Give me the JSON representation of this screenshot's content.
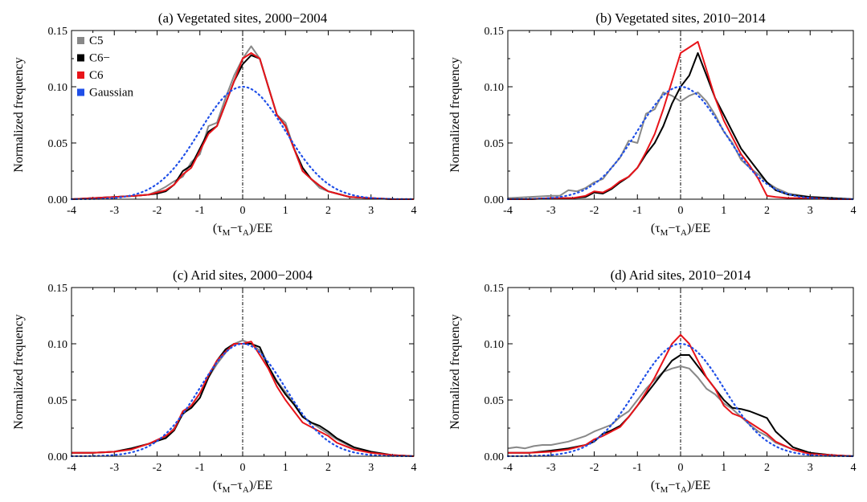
{
  "xlabel_parts": {
    "open": "(τ",
    "sub1": "M",
    "mid": "−τ",
    "sub2": "A",
    "close": ")/EE"
  },
  "xlim": [
    -4,
    4
  ],
  "ylim": [
    0,
    0.15
  ],
  "xticks": [
    -4,
    -3,
    -2,
    -1,
    0,
    1,
    2,
    3,
    4
  ],
  "yticks": [
    "0.00",
    "0.05",
    "0.10",
    "0.15"
  ],
  "colors": {
    "C5": "#888888",
    "C6-": "#000000",
    "C6": "#e8141a",
    "Gaussian": "#1f4fe8"
  },
  "legend": [
    "C5",
    "C6−",
    "C6",
    "Gaussian"
  ],
  "chart_data": [
    {
      "type": "line",
      "title": "(a) Vegetated sites, 2000−2004",
      "ylabel": "Normalized frequency",
      "xlabel": "(τM−τA)/EE",
      "series": [
        {
          "name": "C5",
          "key": "C5",
          "style": "solid",
          "x": [
            -4,
            -3.5,
            -3,
            -2.5,
            -2.2,
            -2,
            -1.8,
            -1.6,
            -1.4,
            -1.2,
            -1,
            -0.8,
            -0.6,
            -0.4,
            -0.2,
            0,
            0.2,
            0.4,
            0.6,
            0.8,
            1,
            1.2,
            1.4,
            1.6,
            1.8,
            2,
            2.2,
            2.5,
            3,
            3.5,
            4
          ],
          "y": [
            0,
            0.001,
            0.002,
            0.003,
            0.004,
            0.007,
            0.011,
            0.016,
            0.02,
            0.033,
            0.04,
            0.065,
            0.068,
            0.09,
            0.11,
            0.125,
            0.136,
            0.125,
            0.1,
            0.075,
            0.068,
            0.045,
            0.025,
            0.018,
            0.01,
            0.007,
            0.005,
            0.002,
            0.001,
            0,
            0
          ]
        },
        {
          "name": "C6−",
          "key": "C6-",
          "style": "solid",
          "x": [
            -4,
            -3.5,
            -3,
            -2.5,
            -2.2,
            -2,
            -1.8,
            -1.6,
            -1.4,
            -1.2,
            -1,
            -0.8,
            -0.6,
            -0.4,
            -0.2,
            0,
            0.2,
            0.4,
            0.6,
            0.8,
            1,
            1.2,
            1.4,
            1.6,
            1.8,
            2,
            2.2,
            2.5,
            3,
            3.5,
            4
          ],
          "y": [
            0,
            0.001,
            0.002,
            0.003,
            0.004,
            0.005,
            0.007,
            0.013,
            0.025,
            0.03,
            0.045,
            0.06,
            0.065,
            0.085,
            0.105,
            0.12,
            0.128,
            0.125,
            0.1,
            0.075,
            0.065,
            0.045,
            0.028,
            0.018,
            0.012,
            0.007,
            0.005,
            0.002,
            0.001,
            0,
            0
          ]
        },
        {
          "name": "C6",
          "key": "C6",
          "style": "solid",
          "x": [
            -4,
            -3.5,
            -3,
            -2.5,
            -2.2,
            -2,
            -1.8,
            -1.6,
            -1.4,
            -1.2,
            -1,
            -0.8,
            -0.6,
            -0.4,
            -0.2,
            0,
            0.2,
            0.4,
            0.6,
            0.8,
            1,
            1.2,
            1.4,
            1.6,
            1.8,
            2,
            2.2,
            2.5,
            3,
            3.5,
            4
          ],
          "y": [
            0,
            0.001,
            0.002,
            0.003,
            0.004,
            0.006,
            0.008,
            0.013,
            0.022,
            0.028,
            0.043,
            0.058,
            0.065,
            0.085,
            0.105,
            0.125,
            0.13,
            0.125,
            0.1,
            0.075,
            0.065,
            0.045,
            0.025,
            0.018,
            0.012,
            0.007,
            0.005,
            0.002,
            0.001,
            0,
            0
          ]
        },
        {
          "name": "Gaussian",
          "key": "Gaussian",
          "style": "dotted",
          "gaussian": true
        }
      ]
    },
    {
      "type": "line",
      "title": "(b) Vegetated sites, 2010−2014",
      "ylabel": "Normalized frequency",
      "xlabel": "(τM−τA)/EE",
      "series": [
        {
          "name": "C5",
          "key": "C5",
          "style": "solid",
          "x": [
            -4,
            -3.5,
            -3,
            -2.8,
            -2.6,
            -2.4,
            -2.2,
            -2,
            -1.8,
            -1.6,
            -1.4,
            -1.2,
            -1,
            -0.8,
            -0.6,
            -0.4,
            -0.2,
            0,
            0.2,
            0.4,
            0.6,
            0.8,
            1,
            1.2,
            1.4,
            1.6,
            1.8,
            2,
            2.2,
            2.5,
            3,
            3.5,
            4
          ],
          "y": [
            0.001,
            0.002,
            0.003,
            0.003,
            0.008,
            0.007,
            0.01,
            0.015,
            0.018,
            0.028,
            0.037,
            0.052,
            0.05,
            0.076,
            0.08,
            0.095,
            0.092,
            0.087,
            0.092,
            0.095,
            0.087,
            0.075,
            0.06,
            0.05,
            0.035,
            0.028,
            0.022,
            0.015,
            0.01,
            0.005,
            0.002,
            0.001,
            0
          ]
        },
        {
          "name": "C6−",
          "key": "C6-",
          "style": "solid",
          "x": [
            -4,
            -3.5,
            -3,
            -2.5,
            -2.2,
            -2,
            -1.8,
            -1.6,
            -1.4,
            -1.2,
            -1,
            -0.8,
            -0.6,
            -0.4,
            -0.2,
            0,
            0.2,
            0.4,
            0.6,
            0.8,
            1,
            1.2,
            1.4,
            1.6,
            1.8,
            2,
            2.2,
            2.5,
            3,
            3.5,
            4
          ],
          "y": [
            0,
            0,
            0.001,
            0.001,
            0.002,
            0.006,
            0.005,
            0.009,
            0.015,
            0.02,
            0.028,
            0.04,
            0.05,
            0.065,
            0.085,
            0.1,
            0.11,
            0.13,
            0.11,
            0.09,
            0.075,
            0.06,
            0.045,
            0.035,
            0.025,
            0.015,
            0.008,
            0.004,
            0.002,
            0.001,
            0
          ]
        },
        {
          "name": "C6",
          "key": "C6",
          "style": "solid",
          "x": [
            -4,
            -3.5,
            -3,
            -2.5,
            -2.2,
            -2,
            -1.8,
            -1.6,
            -1.4,
            -1.2,
            -1,
            -0.8,
            -0.6,
            -0.4,
            -0.2,
            0,
            0.2,
            0.4,
            0.6,
            0.8,
            1,
            1.2,
            1.4,
            1.6,
            1.8,
            2,
            2.2,
            2.5,
            3,
            3.5,
            4
          ],
          "y": [
            0,
            0,
            0.001,
            0.001,
            0.003,
            0.007,
            0.006,
            0.01,
            0.016,
            0.02,
            0.028,
            0.042,
            0.058,
            0.08,
            0.105,
            0.13,
            0.135,
            0.14,
            0.115,
            0.09,
            0.07,
            0.055,
            0.04,
            0.03,
            0.018,
            0.003,
            0.002,
            0.001,
            0.001,
            0,
            0
          ]
        },
        {
          "name": "Gaussian",
          "key": "Gaussian",
          "style": "dotted",
          "gaussian": true
        }
      ]
    },
    {
      "type": "line",
      "title": "(c) Arid sites, 2000−2004",
      "ylabel": "Normalized frequency",
      "xlabel": "(τM−τA)/EE",
      "series": [
        {
          "name": "C5",
          "key": "C5",
          "style": "solid",
          "x": [
            -4,
            -3.5,
            -3,
            -2.6,
            -2.2,
            -1.8,
            -1.6,
            -1.4,
            -1.2,
            -1,
            -0.8,
            -0.6,
            -0.4,
            -0.2,
            0,
            0.2,
            0.4,
            0.6,
            0.8,
            1,
            1.2,
            1.4,
            1.6,
            1.8,
            2,
            2.2,
            2.6,
            3,
            3.5,
            4
          ],
          "y": [
            0.003,
            0.003,
            0.004,
            0.007,
            0.011,
            0.017,
            0.025,
            0.037,
            0.045,
            0.056,
            0.07,
            0.082,
            0.092,
            0.1,
            0.103,
            0.1,
            0.094,
            0.08,
            0.067,
            0.057,
            0.047,
            0.035,
            0.03,
            0.025,
            0.02,
            0.015,
            0.007,
            0.003,
            0.001,
            0
          ]
        },
        {
          "name": "C6−",
          "key": "C6-",
          "style": "solid",
          "x": [
            -4,
            -3.5,
            -3,
            -2.6,
            -2.2,
            -1.8,
            -1.6,
            -1.4,
            -1.2,
            -1,
            -0.8,
            -0.6,
            -0.4,
            -0.2,
            0,
            0.2,
            0.4,
            0.6,
            0.8,
            1,
            1.2,
            1.4,
            1.6,
            1.8,
            2,
            2.2,
            2.6,
            3,
            3.5,
            4
          ],
          "y": [
            0.003,
            0.003,
            0.004,
            0.007,
            0.011,
            0.016,
            0.023,
            0.038,
            0.043,
            0.052,
            0.07,
            0.085,
            0.095,
            0.1,
            0.1,
            0.1,
            0.097,
            0.08,
            0.066,
            0.055,
            0.046,
            0.035,
            0.03,
            0.027,
            0.022,
            0.016,
            0.008,
            0.004,
            0.001,
            0
          ]
        },
        {
          "name": "C6",
          "key": "C6",
          "style": "solid",
          "x": [
            -4,
            -3.5,
            -3,
            -2.6,
            -2.2,
            -1.8,
            -1.6,
            -1.4,
            -1.2,
            -1,
            -0.8,
            -0.6,
            -0.4,
            -0.2,
            0,
            0.2,
            0.4,
            0.6,
            0.8,
            1,
            1.2,
            1.4,
            1.6,
            1.8,
            2,
            2.2,
            2.6,
            3,
            3.5,
            4
          ],
          "y": [
            0.003,
            0.003,
            0.004,
            0.006,
            0.011,
            0.018,
            0.024,
            0.04,
            0.045,
            0.056,
            0.072,
            0.085,
            0.093,
            0.1,
            0.1,
            0.102,
            0.09,
            0.078,
            0.062,
            0.05,
            0.04,
            0.03,
            0.026,
            0.022,
            0.018,
            0.012,
            0.006,
            0.003,
            0.001,
            0
          ]
        },
        {
          "name": "Gaussian",
          "key": "Gaussian",
          "style": "dotted",
          "gaussian": true
        }
      ]
    },
    {
      "type": "line",
      "title": "(d) Arid sites, 2010−2014",
      "ylabel": "Normalized frequency",
      "xlabel": "(τM−τA)/EE",
      "series": [
        {
          "name": "C5",
          "key": "C5",
          "style": "solid",
          "x": [
            -4,
            -3.8,
            -3.6,
            -3.4,
            -3.2,
            -3,
            -2.6,
            -2.2,
            -2,
            -1.8,
            -1.6,
            -1.4,
            -1.2,
            -1,
            -0.8,
            -0.6,
            -0.4,
            -0.2,
            0,
            0.2,
            0.4,
            0.6,
            0.8,
            1,
            1.2,
            1.4,
            1.6,
            1.8,
            2,
            2.2,
            2.6,
            3,
            3.5,
            4
          ],
          "y": [
            0.007,
            0.008,
            0.007,
            0.009,
            0.01,
            0.01,
            0.013,
            0.018,
            0.022,
            0.025,
            0.028,
            0.035,
            0.04,
            0.05,
            0.06,
            0.068,
            0.075,
            0.078,
            0.08,
            0.078,
            0.07,
            0.06,
            0.055,
            0.047,
            0.042,
            0.035,
            0.028,
            0.022,
            0.018,
            0.012,
            0.006,
            0.003,
            0.001,
            0
          ]
        },
        {
          "name": "C6−",
          "key": "C6-",
          "style": "solid",
          "x": [
            -4,
            -3.5,
            -3,
            -2.6,
            -2.2,
            -2,
            -1.8,
            -1.6,
            -1.4,
            -1.2,
            -1,
            -0.8,
            -0.6,
            -0.4,
            -0.2,
            0,
            0.2,
            0.4,
            0.6,
            0.8,
            1,
            1.2,
            1.4,
            1.6,
            1.8,
            2,
            2.2,
            2.6,
            3,
            3.5,
            4
          ],
          "y": [
            0.003,
            0.003,
            0.005,
            0.007,
            0.01,
            0.013,
            0.02,
            0.023,
            0.027,
            0.035,
            0.045,
            0.055,
            0.065,
            0.075,
            0.085,
            0.09,
            0.09,
            0.08,
            0.07,
            0.06,
            0.05,
            0.043,
            0.042,
            0.04,
            0.037,
            0.034,
            0.022,
            0.008,
            0.003,
            0.001,
            0
          ]
        },
        {
          "name": "C6",
          "key": "C6",
          "style": "solid",
          "x": [
            -4,
            -3.5,
            -3,
            -2.6,
            -2.2,
            -2,
            -1.8,
            -1.6,
            -1.4,
            -1.2,
            -1,
            -0.8,
            -0.6,
            -0.4,
            -0.2,
            0,
            0.2,
            0.4,
            0.6,
            0.8,
            1,
            1.2,
            1.4,
            1.6,
            1.8,
            2,
            2.2,
            2.6,
            3,
            3.5,
            4
          ],
          "y": [
            0.003,
            0.003,
            0.004,
            0.006,
            0.01,
            0.015,
            0.018,
            0.022,
            0.026,
            0.035,
            0.045,
            0.057,
            0.07,
            0.085,
            0.1,
            0.108,
            0.1,
            0.085,
            0.07,
            0.06,
            0.045,
            0.038,
            0.035,
            0.03,
            0.025,
            0.02,
            0.013,
            0.006,
            0.002,
            0.001,
            0
          ]
        },
        {
          "name": "Gaussian",
          "key": "Gaussian",
          "style": "dotted",
          "gaussian": true
        }
      ]
    }
  ]
}
